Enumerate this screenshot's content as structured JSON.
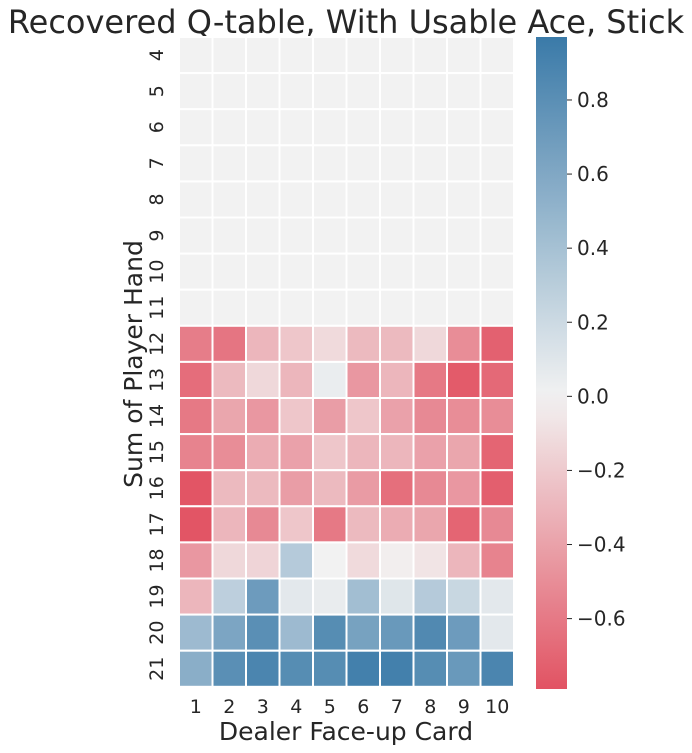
{
  "chart_data": {
    "type": "heatmap",
    "title": "Recovered Q-table, With Usable Ace, Stick",
    "xlabel": "Dealer Face-up Card",
    "ylabel": "Sum of Player Hand",
    "x_categories": [
      "1",
      "2",
      "3",
      "4",
      "5",
      "6",
      "7",
      "8",
      "9",
      "10"
    ],
    "y_categories": [
      "4",
      "5",
      "6",
      "7",
      "8",
      "9",
      "10",
      "11",
      "12",
      "13",
      "14",
      "15",
      "16",
      "17",
      "18",
      "19",
      "20",
      "21"
    ],
    "values": [
      [
        0,
        0,
        0,
        0,
        0,
        0,
        0,
        0,
        0,
        0
      ],
      [
        0,
        0,
        0,
        0,
        0,
        0,
        0,
        0,
        0,
        0
      ],
      [
        0,
        0,
        0,
        0,
        0,
        0,
        0,
        0,
        0,
        0
      ],
      [
        0,
        0,
        0,
        0,
        0,
        0,
        0,
        0,
        0,
        0
      ],
      [
        0,
        0,
        0,
        0,
        0,
        0,
        0,
        0,
        0,
        0
      ],
      [
        0,
        0,
        0,
        0,
        0,
        0,
        0,
        0,
        0,
        0
      ],
      [
        0,
        0,
        0,
        0,
        0,
        0,
        0,
        0,
        0,
        0
      ],
      [
        0,
        0,
        0,
        0,
        0,
        0,
        0,
        0,
        0,
        0
      ],
      [
        -0.58,
        -0.62,
        -0.3,
        -0.22,
        -0.12,
        -0.28,
        -0.28,
        -0.13,
        -0.5,
        -0.72
      ],
      [
        -0.66,
        -0.28,
        -0.13,
        -0.3,
        0.04,
        -0.45,
        -0.3,
        -0.6,
        -0.75,
        -0.68
      ],
      [
        -0.6,
        -0.38,
        -0.45,
        -0.22,
        -0.42,
        -0.22,
        -0.4,
        -0.52,
        -0.5,
        -0.5
      ],
      [
        -0.55,
        -0.5,
        -0.35,
        -0.4,
        -0.22,
        -0.3,
        -0.3,
        -0.4,
        -0.38,
        -0.7
      ],
      [
        -0.78,
        -0.28,
        -0.28,
        -0.42,
        -0.28,
        -0.43,
        -0.65,
        -0.52,
        -0.45,
        -0.73
      ],
      [
        -0.78,
        -0.3,
        -0.52,
        -0.22,
        -0.6,
        -0.28,
        -0.35,
        -0.38,
        -0.7,
        -0.52
      ],
      [
        -0.45,
        -0.13,
        -0.15,
        0.32,
        0.0,
        -0.12,
        -0.02,
        -0.07,
        -0.3,
        -0.55
      ],
      [
        -0.3,
        0.28,
        0.7,
        0.08,
        0.05,
        0.42,
        0.1,
        0.32,
        0.22,
        0.08
      ],
      [
        0.45,
        0.62,
        0.8,
        0.45,
        0.82,
        0.65,
        0.72,
        0.85,
        0.7,
        0.08
      ],
      [
        0.55,
        0.8,
        0.88,
        0.82,
        0.82,
        0.92,
        0.92,
        0.82,
        0.72,
        0.88
      ]
    ],
    "vmin": -0.79,
    "vmax": 0.97,
    "colorbar_ticks": [
      0.8,
      0.6,
      0.4,
      0.2,
      0.0,
      -0.2,
      -0.4,
      -0.6
    ],
    "colorbar_tick_labels": [
      "0.8",
      "0.6",
      "0.4",
      "0.2",
      "0.0",
      "−0.2",
      "−0.4",
      "−0.6"
    ],
    "colors": {
      "negative": "#e25363",
      "center": "#f2f2f2",
      "positive": "#3a7aa8",
      "cell_border": "#ffffff",
      "text": "#262626"
    }
  }
}
